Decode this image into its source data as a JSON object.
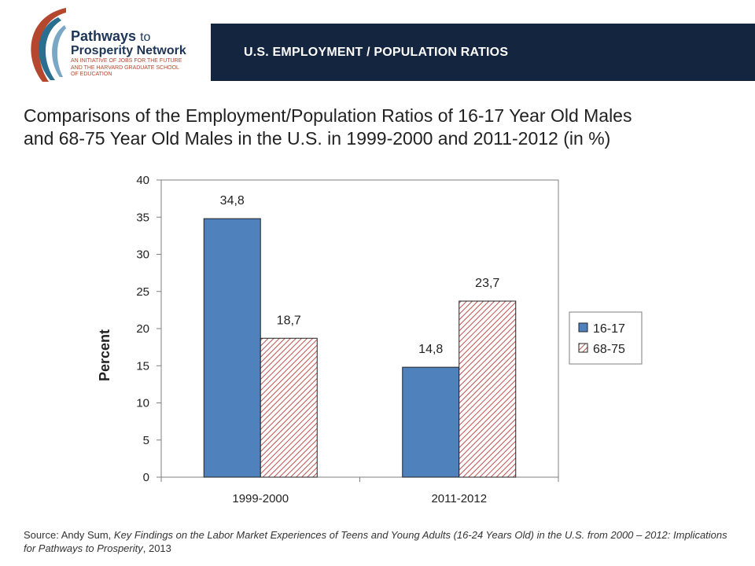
{
  "header": {
    "logo": {
      "line1": "Pathways",
      "line1_suffix": "to",
      "line2": "Prosperity Network",
      "tagline": [
        "AN INITIATIVE OF JOBS FOR THE FUTURE",
        "AND THE HARVARD GRADUATE SCHOOL",
        "OF EDUCATION"
      ]
    },
    "title": "U.S. EMPLOYMENT / POPULATION RATIOS",
    "band_color": "#14253f"
  },
  "slide_title": [
    "Comparisons of the Employment/Population Ratios of 16-17 Year Old Males",
    "and 68-75 Year Old Males in the U.S. in 1999-2000 and 2011-2012 (in %)"
  ],
  "chart_data": {
    "type": "bar",
    "categories": [
      "1999-2000",
      "2011-2012"
    ],
    "series": [
      {
        "name": "16-17",
        "values": [
          34.8,
          14.8
        ],
        "labels": [
          "34,8",
          "14,8"
        ],
        "color": "#4f81bd",
        "fill": "solid"
      },
      {
        "name": "68-75",
        "values": [
          18.7,
          23.7
        ],
        "labels": [
          "18,7",
          "23,7"
        ],
        "color": "#c0504d",
        "fill": "hatched"
      }
    ],
    "ylabel": "Percent",
    "xlabel": "",
    "ylim": [
      0,
      40
    ],
    "yticks": [
      0,
      5,
      10,
      15,
      20,
      25,
      30,
      35,
      40
    ],
    "grid": false,
    "legend": "right"
  },
  "source": {
    "prefix": "Source: Andy Sum, ",
    "title": "Key Findings on the Labor Market Experiences of  Teens and Young Adults (16-24 Years Old) in the U.S. from 2000 – 2012: Implications for Pathways to Prosperity",
    "suffix": ", 2013"
  }
}
